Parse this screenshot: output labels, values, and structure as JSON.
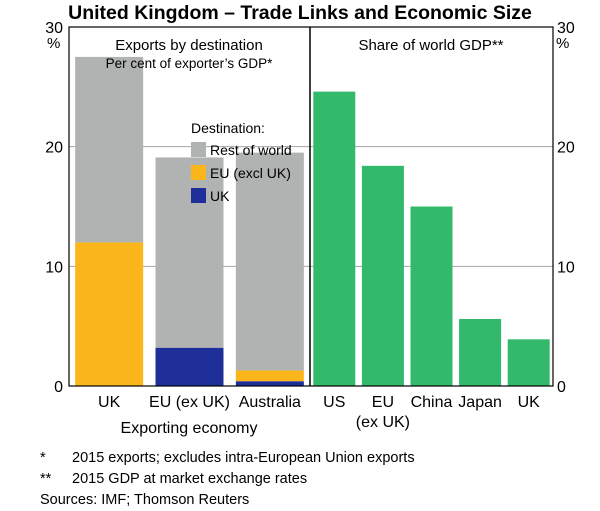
{
  "title": "United Kingdom – Trade Links and Economic Size",
  "axis_unit_left": "%",
  "axis_unit_right": "%",
  "chart_data": [
    {
      "type": "bar",
      "stacked": true,
      "title": "Exports by destination",
      "subtitle": "Per cent of exporter’s GDP*",
      "xlabel": "Exporting economy",
      "categories": [
        "UK",
        "EU (ex UK)",
        "Australia"
      ],
      "ylim": [
        0,
        30
      ],
      "yticks": [
        0,
        10,
        20,
        30
      ],
      "grid": true,
      "legend_title": "Destination:",
      "legend_position": "top-right",
      "series": [
        {
          "name": "UK",
          "color": "#1f2f9a",
          "values": [
            0,
            3.2,
            0.4
          ]
        },
        {
          "name": "EU (excl UK)",
          "color": "#fbb61b",
          "values": [
            12.0,
            0,
            0.9
          ]
        },
        {
          "name": "Rest of world",
          "color": "#b1b3b3",
          "values": [
            15.5,
            15.9,
            18.2
          ]
        }
      ]
    },
    {
      "type": "bar",
      "title": "Share of world GDP**",
      "categories": [
        "US",
        "EU (ex UK)",
        "China",
        "Japan",
        "UK"
      ],
      "category_lines": [
        [
          "US"
        ],
        [
          "EU",
          "(ex UK)"
        ],
        [
          "China"
        ],
        [
          "Japan"
        ],
        [
          "UK"
        ]
      ],
      "ylim": [
        0,
        30
      ],
      "yticks": [
        0,
        10,
        20,
        30
      ],
      "grid": true,
      "series": [
        {
          "color": "#33b96b",
          "values": [
            24.6,
            18.4,
            15.0,
            5.6,
            3.9
          ]
        }
      ]
    }
  ],
  "notes": [
    {
      "mark": "*",
      "text": "2015 exports; excludes intra-European Union exports"
    },
    {
      "mark": "**",
      "text": "2015 GDP at market exchange rates"
    },
    {
      "mark": "Sources:",
      "text": "IMF; Thomson Reuters"
    }
  ]
}
